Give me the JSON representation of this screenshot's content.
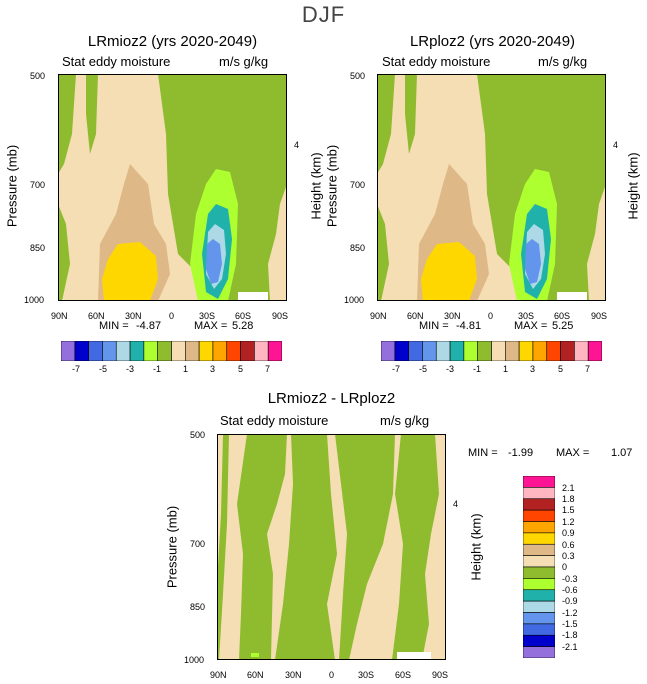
{
  "figure_title": "DJF",
  "colors": {
    "-8": "#9370db",
    "-7": "#0000cd",
    "-6": "#4169e1",
    "-5": "#6495ed",
    "-4": "#add8e6",
    "-3": "#20b2aa",
    "-2": "#adff2f",
    "-1": "#8fbc2f",
    "0": "#f5deb3",
    "1": "#deb887",
    "2": "#ffd700",
    "3": "#ffa500",
    "4": "#ff4500",
    "5": "#b22222",
    "6": "#ffb6c1",
    "7": "#ff1493"
  },
  "chart_data": [
    {
      "type": "heatmap",
      "title": "LRmioz2 (yrs 2020-2049)",
      "subtitle_left": "Stat eddy moisture",
      "subtitle_right": "m/s g/kg",
      "xlabel": "",
      "ylabel": "Pressure (mb)",
      "ylabel_right": "Height (km)",
      "xticks": [
        "90N",
        "60N",
        "30N",
        "0",
        "30S",
        "60S",
        "90S"
      ],
      "yticks": [
        "500",
        "700",
        "850",
        "1000"
      ],
      "yticks_right": [
        "4"
      ],
      "min_label": "MIN =",
      "min_value": "-4.87",
      "max_label": "MAX =",
      "max_value": "5.28",
      "colorbar": {
        "orientation": "horizontal",
        "labels": [
          "-7",
          "-5",
          "-3",
          "-1",
          "1",
          "3",
          "5",
          "7"
        ],
        "levels": [
          -7,
          -6,
          -5,
          -4,
          -3,
          -2,
          -1,
          0,
          1,
          2,
          3,
          4,
          5,
          6,
          7
        ],
        "n_colors": 16
      }
    },
    {
      "type": "heatmap",
      "title": "LRploz2 (yrs 2020-2049)",
      "subtitle_left": "Stat eddy moisture",
      "subtitle_right": "m/s g/kg",
      "xlabel": "",
      "ylabel": "Pressure (mb)",
      "ylabel_right": "Height (km)",
      "xticks": [
        "90N",
        "60N",
        "30N",
        "0",
        "30S",
        "60S",
        "90S"
      ],
      "yticks": [
        "500",
        "700",
        "850",
        "1000"
      ],
      "yticks_right": [
        "4"
      ],
      "min_label": "MIN =",
      "min_value": "-4.81",
      "max_label": "MAX =",
      "max_value": "5.25",
      "colorbar": {
        "orientation": "horizontal",
        "labels": [
          "-7",
          "-5",
          "-3",
          "-1",
          "1",
          "3",
          "5",
          "7"
        ],
        "levels": [
          -7,
          -6,
          -5,
          -4,
          -3,
          -2,
          -1,
          0,
          1,
          2,
          3,
          4,
          5,
          6,
          7
        ],
        "n_colors": 16
      }
    },
    {
      "type": "heatmap",
      "title": "LRmioz2 - LRploz2",
      "subtitle_left": "Stat eddy moisture",
      "subtitle_right": "m/s g/kg",
      "xlabel": "",
      "ylabel": "Pressure (mb)",
      "ylabel_right": "Height (km)",
      "xticks": [
        "90N",
        "60N",
        "30N",
        "0",
        "30S",
        "60S",
        "90S"
      ],
      "yticks": [
        "500",
        "700",
        "850",
        "1000"
      ],
      "yticks_right": [
        "4"
      ],
      "min_label": "MIN =",
      "min_value": "-1.99",
      "max_label": "MAX =",
      "max_value": "1.07",
      "colorbar": {
        "orientation": "vertical",
        "labels": [
          "2.1",
          "1.8",
          "1.5",
          "1.2",
          "0.9",
          "0.6",
          "0.3",
          "0",
          "-0.3",
          "-0.6",
          "-0.9",
          "-1.2",
          "-1.5",
          "-1.8",
          "-2.1"
        ],
        "levels": [
          -2.1,
          -1.8,
          -1.5,
          -1.2,
          -0.9,
          -0.6,
          -0.3,
          0,
          0.3,
          0.6,
          0.9,
          1.2,
          1.5,
          1.8,
          2.1
        ],
        "n_colors": 16
      }
    }
  ]
}
